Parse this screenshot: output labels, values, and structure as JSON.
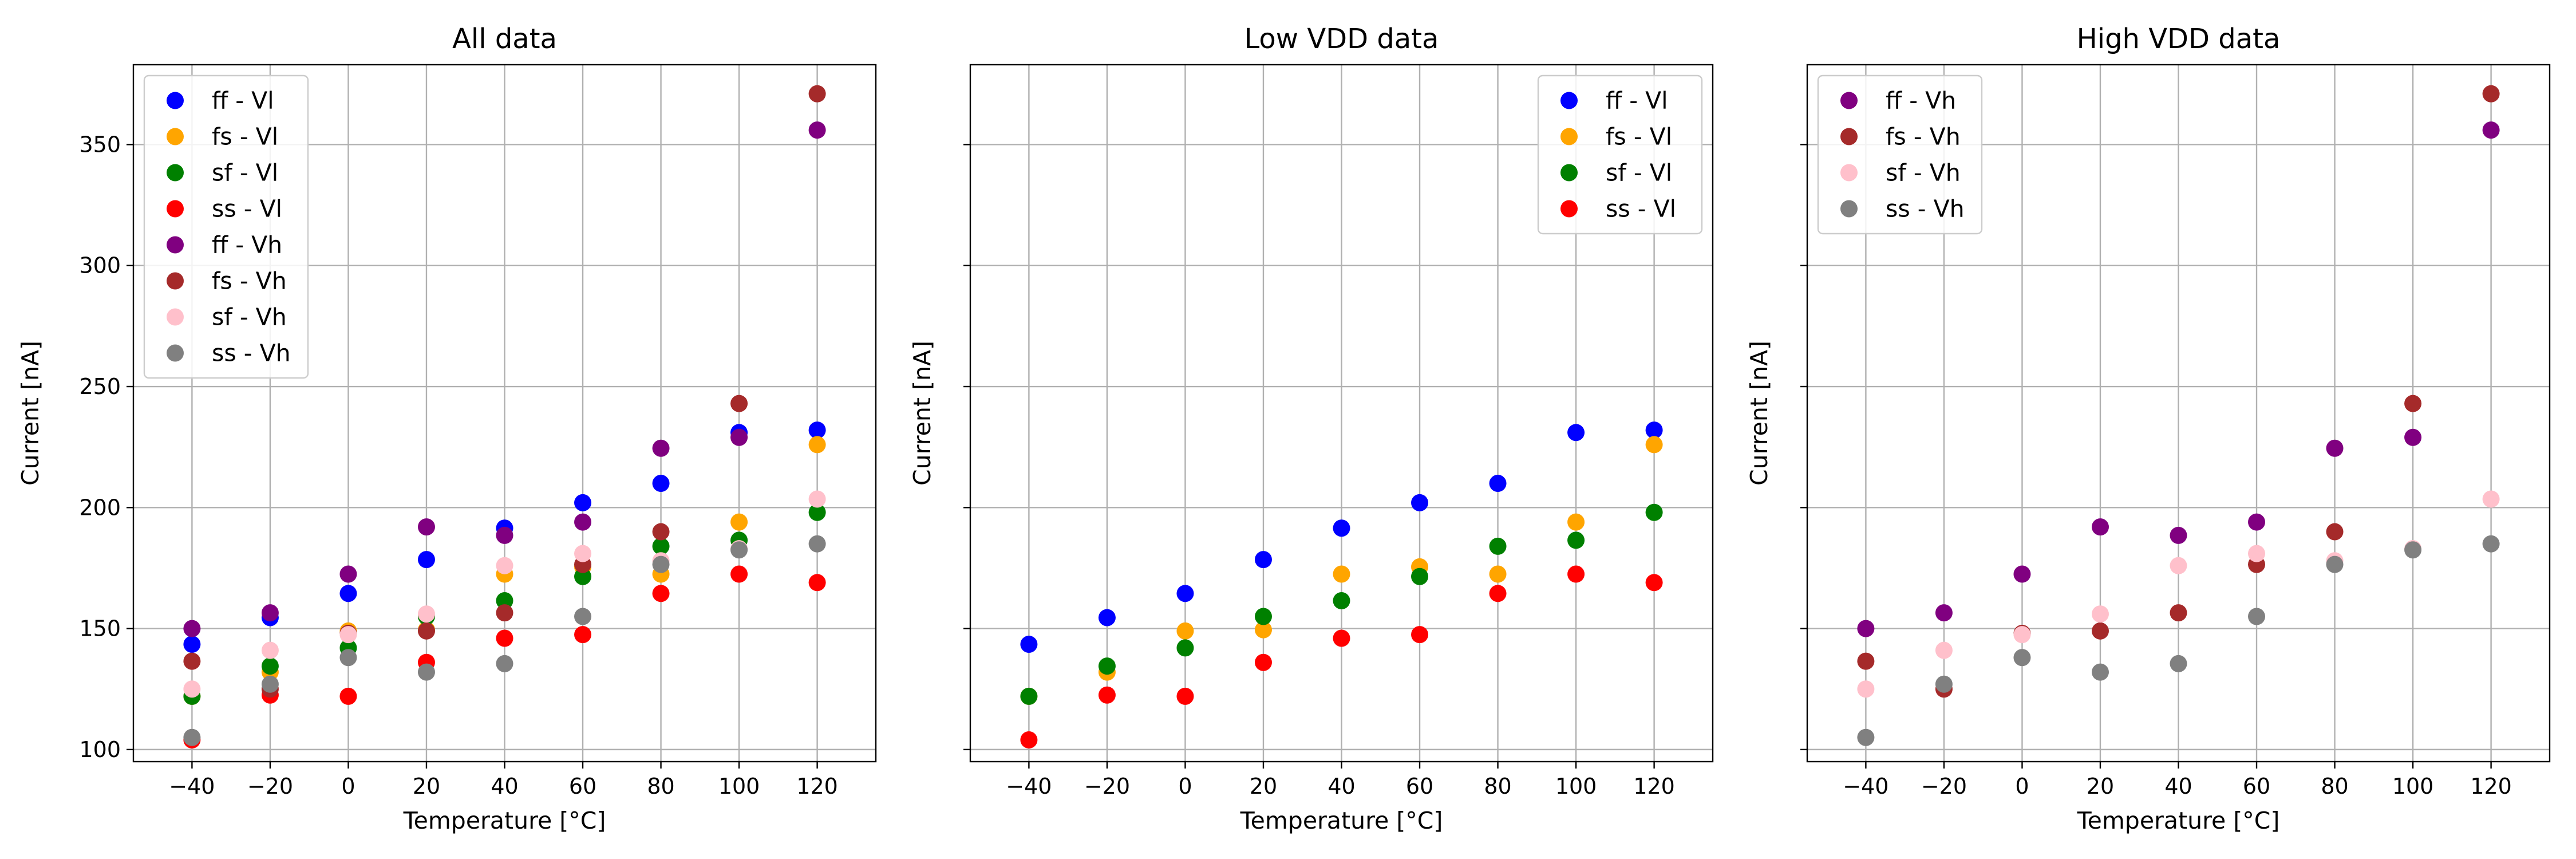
{
  "figure": {
    "background": "#ffffff",
    "grid_color": "#b0b0b0"
  },
  "chart_data": [
    {
      "type": "scatter",
      "title": "All data",
      "xlabel": "Temperature [°C]",
      "ylabel": "Current [nA]",
      "xlim": [
        -55,
        135
      ],
      "ylim": [
        95,
        383
      ],
      "xticks": [
        -40,
        -20,
        0,
        20,
        40,
        60,
        80,
        100,
        120
      ],
      "yticks": [
        100,
        150,
        200,
        250,
        300,
        350
      ],
      "show_ytick_labels": true,
      "grid": true,
      "legend_position": "upper-left",
      "x": [
        -40,
        -20,
        0,
        20,
        40,
        60,
        80,
        100,
        120
      ],
      "series": [
        {
          "name": "ff - Vl",
          "color": "#0000ff",
          "values": [
            143.5,
            154.5,
            164.5,
            178.5,
            191.5,
            202,
            210,
            231,
            232
          ]
        },
        {
          "name": "fs - Vl",
          "color": "#ffa500",
          "values": [
            122,
            132,
            149,
            149.5,
            172.5,
            175.5,
            172.5,
            194,
            226
          ]
        },
        {
          "name": "sf - Vl",
          "color": "#008000",
          "values": [
            122,
            134.5,
            142,
            155,
            161.5,
            171.5,
            184,
            186.5,
            198
          ]
        },
        {
          "name": "ss - Vl",
          "color": "#ff0000",
          "values": [
            104,
            122.5,
            122,
            136,
            146,
            147.5,
            164.5,
            172.5,
            169
          ]
        },
        {
          "name": "ff - Vh",
          "color": "#800080",
          "values": [
            150,
            156.5,
            172.5,
            192,
            188.5,
            194,
            224.5,
            229,
            356
          ]
        },
        {
          "name": "fs - Vh",
          "color": "#a52a2a",
          "values": [
            136.5,
            125,
            148,
            149,
            156.5,
            176.5,
            190,
            243,
            371
          ]
        },
        {
          "name": "sf - Vh",
          "color": "#ffc0cb",
          "values": [
            125,
            141,
            147.5,
            156,
            176,
            181,
            178,
            183,
            203.5
          ]
        },
        {
          "name": "ss - Vh",
          "color": "#808080",
          "values": [
            105,
            127,
            138,
            132,
            135.5,
            155,
            176.5,
            182.5,
            185
          ]
        }
      ]
    },
    {
      "type": "scatter",
      "title": "Low VDD data",
      "xlabel": "Temperature [°C]",
      "ylabel": "Current [nA]",
      "xlim": [
        -55,
        135
      ],
      "ylim": [
        95,
        383
      ],
      "xticks": [
        -40,
        -20,
        0,
        20,
        40,
        60,
        80,
        100,
        120
      ],
      "yticks": [
        100,
        150,
        200,
        250,
        300,
        350
      ],
      "show_ytick_labels": false,
      "grid": true,
      "legend_position": "upper-right",
      "x": [
        -40,
        -20,
        0,
        20,
        40,
        60,
        80,
        100,
        120
      ],
      "series": [
        {
          "name": "ff - Vl",
          "color": "#0000ff",
          "values": [
            143.5,
            154.5,
            164.5,
            178.5,
            191.5,
            202,
            210,
            231,
            232
          ]
        },
        {
          "name": "fs - Vl",
          "color": "#ffa500",
          "values": [
            122,
            132,
            149,
            149.5,
            172.5,
            175.5,
            172.5,
            194,
            226
          ]
        },
        {
          "name": "sf - Vl",
          "color": "#008000",
          "values": [
            122,
            134.5,
            142,
            155,
            161.5,
            171.5,
            184,
            186.5,
            198
          ]
        },
        {
          "name": "ss - Vl",
          "color": "#ff0000",
          "values": [
            104,
            122.5,
            122,
            136,
            146,
            147.5,
            164.5,
            172.5,
            169
          ]
        }
      ]
    },
    {
      "type": "scatter",
      "title": "High VDD data",
      "xlabel": "Temperature [°C]",
      "ylabel": "Current [nA]",
      "xlim": [
        -55,
        135
      ],
      "ylim": [
        95,
        383
      ],
      "xticks": [
        -40,
        -20,
        0,
        20,
        40,
        60,
        80,
        100,
        120
      ],
      "yticks": [
        100,
        150,
        200,
        250,
        300,
        350
      ],
      "show_ytick_labels": false,
      "grid": true,
      "legend_position": "upper-left",
      "x": [
        -40,
        -20,
        0,
        20,
        40,
        60,
        80,
        100,
        120
      ],
      "series": [
        {
          "name": "ff - Vh",
          "color": "#800080",
          "values": [
            150,
            156.5,
            172.5,
            192,
            188.5,
            194,
            224.5,
            229,
            356
          ]
        },
        {
          "name": "fs - Vh",
          "color": "#a52a2a",
          "values": [
            136.5,
            125,
            148,
            149,
            156.5,
            176.5,
            190,
            243,
            371
          ]
        },
        {
          "name": "sf - Vh",
          "color": "#ffc0cb",
          "values": [
            125,
            141,
            147.5,
            156,
            176,
            181,
            178,
            183,
            203.5
          ]
        },
        {
          "name": "ss - Vh",
          "color": "#808080",
          "values": [
            105,
            127,
            138,
            132,
            135.5,
            155,
            176.5,
            182.5,
            185
          ]
        }
      ]
    }
  ]
}
